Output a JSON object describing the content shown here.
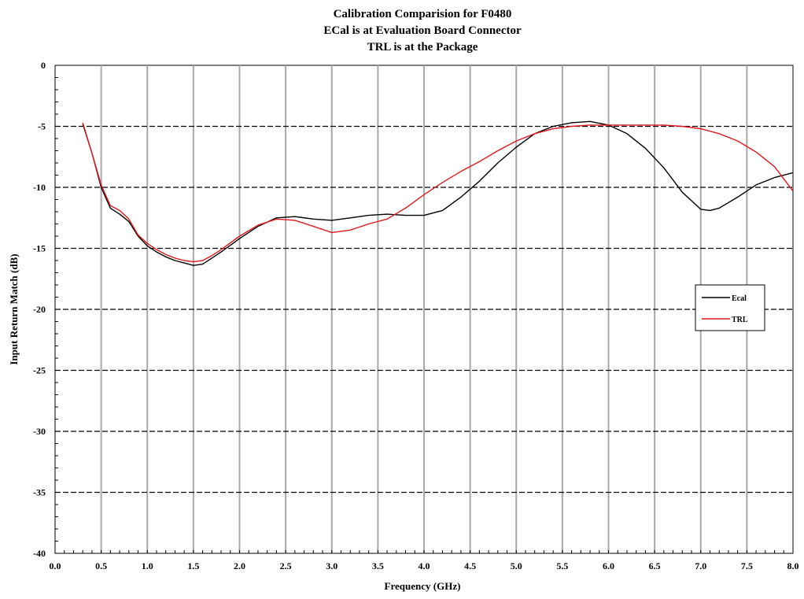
{
  "chart_data": {
    "type": "line",
    "title_lines": [
      "Calibration Comparision for F0480",
      "ECal is at Evaluation Board Connector",
      "TRL is at the Package"
    ],
    "xlabel": "Frequency (GHz)",
    "ylabel": "Input Return Match (dB)",
    "xlim": [
      0.0,
      8.0
    ],
    "ylim": [
      -40,
      0
    ],
    "x_ticks": [
      "0.0",
      "0.5",
      "1.0",
      "1.5",
      "2.0",
      "2.5",
      "3.0",
      "3.5",
      "4.0",
      "4.5",
      "5.0",
      "5.5",
      "6.0",
      "6.5",
      "7.0",
      "7.5",
      "8.0"
    ],
    "y_ticks": [
      "0",
      "-5",
      "-10",
      "-15",
      "-20",
      "-25",
      "-30",
      "-35",
      "-40"
    ],
    "grid": true,
    "legend_position": "right",
    "series": [
      {
        "name": "Ecal",
        "color": "#000000",
        "x": [
          0.3,
          0.4,
          0.5,
          0.6,
          0.7,
          0.8,
          0.9,
          1.0,
          1.1,
          1.2,
          1.3,
          1.4,
          1.5,
          1.6,
          1.7,
          1.8,
          2.0,
          2.2,
          2.4,
          2.6,
          2.8,
          3.0,
          3.2,
          3.4,
          3.6,
          3.8,
          4.0,
          4.2,
          4.4,
          4.6,
          4.8,
          5.0,
          5.2,
          5.4,
          5.6,
          5.8,
          6.0,
          6.2,
          6.4,
          6.6,
          6.8,
          7.0,
          7.1,
          7.2,
          7.4,
          7.6,
          7.8,
          8.0
        ],
        "y": [
          -4.8,
          -7.2,
          -10.0,
          -11.7,
          -12.2,
          -12.8,
          -14.0,
          -14.8,
          -15.3,
          -15.7,
          -16.0,
          -16.2,
          -16.4,
          -16.3,
          -15.8,
          -15.3,
          -14.2,
          -13.2,
          -12.5,
          -12.4,
          -12.6,
          -12.7,
          -12.5,
          -12.3,
          -12.2,
          -12.3,
          -12.3,
          -11.9,
          -10.8,
          -9.5,
          -8.0,
          -6.7,
          -5.6,
          -5.0,
          -4.7,
          -4.6,
          -4.9,
          -5.6,
          -6.8,
          -8.4,
          -10.4,
          -11.8,
          -11.9,
          -11.7,
          -10.8,
          -9.8,
          -9.2,
          -8.8
        ]
      },
      {
        "name": "TRL",
        "color": "#e0191e",
        "x": [
          0.3,
          0.4,
          0.5,
          0.6,
          0.7,
          0.8,
          0.9,
          1.0,
          1.1,
          1.2,
          1.3,
          1.4,
          1.5,
          1.6,
          1.7,
          1.8,
          2.0,
          2.2,
          2.4,
          2.6,
          2.8,
          3.0,
          3.2,
          3.4,
          3.6,
          3.8,
          4.0,
          4.2,
          4.4,
          4.6,
          4.8,
          5.0,
          5.2,
          5.4,
          5.6,
          5.8,
          6.0,
          6.2,
          6.4,
          6.6,
          6.8,
          7.0,
          7.2,
          7.4,
          7.6,
          7.8,
          8.0
        ],
        "y": [
          -4.7,
          -7.2,
          -9.8,
          -11.5,
          -11.9,
          -12.6,
          -13.9,
          -14.6,
          -15.1,
          -15.5,
          -15.8,
          -16.0,
          -16.1,
          -16.0,
          -15.6,
          -15.1,
          -14.0,
          -13.1,
          -12.6,
          -12.7,
          -13.2,
          -13.7,
          -13.5,
          -13.0,
          -12.6,
          -11.7,
          -10.6,
          -9.6,
          -8.7,
          -7.9,
          -7.0,
          -6.2,
          -5.6,
          -5.2,
          -5.0,
          -4.9,
          -4.9,
          -4.9,
          -4.9,
          -4.9,
          -5.0,
          -5.2,
          -5.6,
          -6.2,
          -7.1,
          -8.3,
          -10.3
        ]
      }
    ]
  }
}
